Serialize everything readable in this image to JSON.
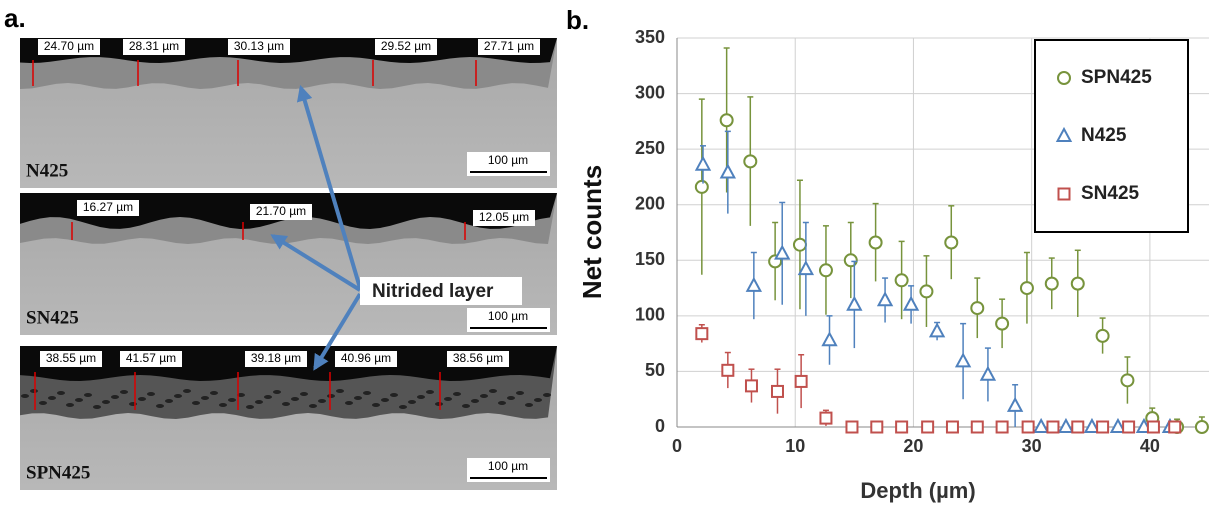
{
  "panel_a": {
    "label": "a.",
    "annotation": "Nitrided layer",
    "micrographs": [
      {
        "name": "N425",
        "scale_bar": "100 µm",
        "measurements": [
          "24.70 µm",
          "28.31 µm",
          "30.13 µm",
          "29.52 µm",
          "27.71 µm"
        ]
      },
      {
        "name": "SN425",
        "scale_bar": "100 µm",
        "measurements": [
          "16.27 µm",
          "21.70 µm",
          "12.05 µm"
        ]
      },
      {
        "name": "SPN425",
        "scale_bar": "100 µm",
        "measurements": [
          "38.55 µm",
          "41.57 µm",
          "39.18 µm",
          "40.96 µm",
          "38.56 µm"
        ]
      }
    ]
  },
  "chart_data": {
    "type": "scatter",
    "label": "b.",
    "x_label": "Depth (µm)",
    "y_label": "Net counts",
    "xlim": [
      0,
      45
    ],
    "ylim": [
      0,
      350
    ],
    "xticks": [
      0,
      10,
      20,
      30,
      40
    ],
    "yticks": [
      0,
      50,
      100,
      150,
      200,
      250,
      300,
      350
    ],
    "grid": true,
    "legend": "upper right",
    "series": [
      {
        "name": "SPN425",
        "color": "#77933c",
        "marker": "circle",
        "x": [
          2.1,
          4.2,
          6.2,
          8.3,
          10.4,
          12.6,
          14.7,
          16.8,
          19.0,
          21.1,
          23.2,
          25.4,
          27.5,
          29.6,
          31.7,
          33.9,
          36.0,
          38.1,
          40.2,
          42.3,
          44.4
        ],
        "values": [
          216,
          276,
          239,
          149,
          164,
          141,
          150,
          166,
          132,
          122,
          166,
          107,
          93,
          125,
          129,
          129,
          82,
          42,
          8,
          0,
          0
        ],
        "errors": [
          79,
          65,
          58,
          35,
          58,
          40,
          34,
          35,
          35,
          32,
          33,
          27,
          22,
          32,
          23,
          30,
          16,
          21,
          9,
          7,
          9
        ]
      },
      {
        "name": "N425",
        "color": "#4f81bd",
        "marker": "triangle",
        "x": [
          2.2,
          4.3,
          6.5,
          8.9,
          10.9,
          12.9,
          15.0,
          17.6,
          19.8,
          22.0,
          24.2,
          26.3,
          28.6,
          30.8,
          32.9,
          35.1,
          37.3,
          39.5,
          41.7
        ],
        "values": [
          236,
          229,
          127,
          156,
          142,
          78,
          110,
          114,
          110,
          86,
          59,
          47,
          19,
          0,
          0,
          0,
          0,
          0,
          0
        ],
        "errors": [
          17,
          37,
          30,
          46,
          42,
          22,
          39,
          20,
          17,
          8,
          34,
          24,
          19,
          0,
          0,
          0,
          0,
          0,
          0
        ]
      },
      {
        "name": "SN425",
        "color": "#c0504d",
        "marker": "square",
        "x": [
          2.1,
          4.3,
          6.3,
          8.5,
          10.5,
          12.6,
          14.8,
          16.9,
          19.0,
          21.2,
          23.3,
          25.4,
          27.5,
          29.7,
          31.8,
          33.9,
          36.0,
          38.2,
          40.3,
          42.1
        ],
        "values": [
          84,
          51,
          37,
          32,
          41,
          8,
          0,
          0,
          0,
          0,
          0,
          0,
          0,
          0,
          0,
          0,
          0,
          0,
          0,
          0
        ],
        "errors": [
          8,
          16,
          15,
          20,
          24,
          7,
          0,
          0,
          0,
          0,
          0,
          0,
          0,
          0,
          0,
          0,
          0,
          0,
          0,
          0
        ]
      }
    ]
  }
}
